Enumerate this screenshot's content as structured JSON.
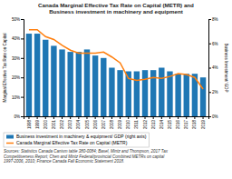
{
  "chart_data": {
    "type": "bar",
    "title": "Canada Marginal Effective Tax Rate on Capital (METR) and\nBusiness investment in machinery and equipment",
    "categories": [
      "1998",
      "1999",
      "2000",
      "2001",
      "2002",
      "2003",
      "2004",
      "2005",
      "2006",
      "2007",
      "2008",
      "2009",
      "2010",
      "2011",
      "2012",
      "2013",
      "2014",
      "2015",
      "2016",
      "2017",
      "2018",
      "2019"
    ],
    "series": [
      {
        "name": "Business investment in machinery & equipment/ GDP (right axis)",
        "type": "bar",
        "axis": "y2",
        "values": [
          6.8,
          6.8,
          6.3,
          5.8,
          5.5,
          5.3,
          5.3,
          5.5,
          5.0,
          4.8,
          4.0,
          3.8,
          3.7,
          3.7,
          3.8,
          3.8,
          4.0,
          3.7,
          3.5,
          3.5,
          3.5,
          3.2
        ]
      },
      {
        "name": "Canada Marginal Effective Tax Rate on Capital (METR)",
        "type": "line",
        "values": [
          44.5,
          44.5,
          41.0,
          39.5,
          36.5,
          34.0,
          32.5,
          32.5,
          32.5,
          33.0,
          30.5,
          27.5,
          19.5,
          18.5,
          19.0,
          20.0,
          19.5,
          20.5,
          22.0,
          21.5,
          20.0,
          14.0
        ]
      }
    ],
    "ylabel": "Marginal Effective Tax Rate on Capital",
    "y2label": "Business Investment/ GDP",
    "ylim": [
      0,
      50
    ],
    "yticks": [
      {
        "value": 0,
        "label": "0%"
      },
      {
        "value": 10,
        "label": "10%"
      },
      {
        "value": 20,
        "label": "20%"
      },
      {
        "value": 30,
        "label": "30%"
      },
      {
        "value": 40,
        "label": "40%"
      },
      {
        "value": 50,
        "label": "50%"
      }
    ],
    "y2lim": [
      0,
      8
    ],
    "y2ticks": [
      {
        "value": 0,
        "label": "0%"
      },
      {
        "value": 2,
        "label": "2%"
      },
      {
        "value": 4,
        "label": "4%"
      },
      {
        "value": 6,
        "label": "6%"
      },
      {
        "value": 8,
        "label": "8%"
      }
    ],
    "annotations": [
      "Sources: Statistics Canada Canism table  380-0084; Basel, Mintz and Thompson, 2017 Tax\nCompetitiveness Report; Chen and Mintz Federal/provincial Combined  METRs on capital\n1997-2006, 2010; Finance Canada Fall Economic Statement 2018."
    ],
    "legend": "bottom",
    "grid": false
  }
}
